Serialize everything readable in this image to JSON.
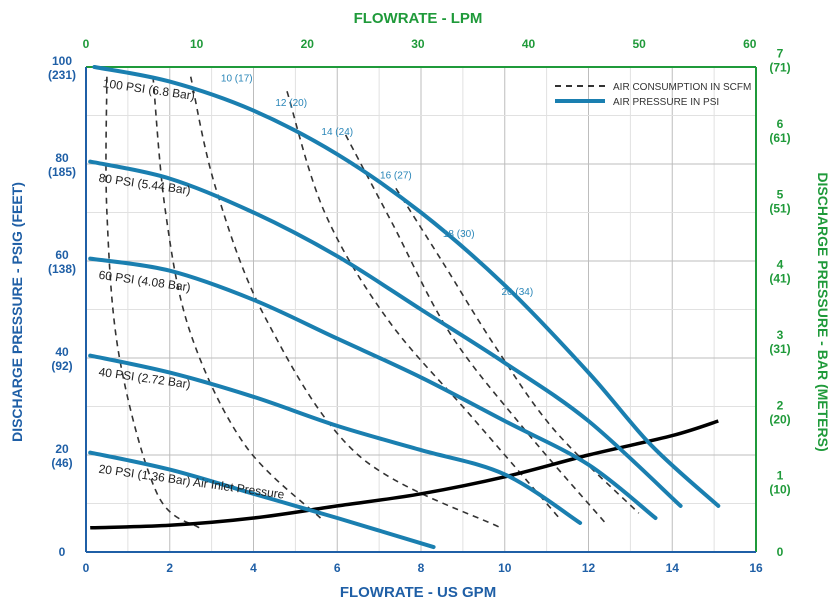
{
  "chart_data": {
    "type": "line",
    "x_top_title": "FLOWRATE - LPM",
    "x_bottom_title": "FLOWRATE - US GPM",
    "y_left_title": "DISCHARGE PRESSURE - PSIG (FEET)",
    "y_right_title": "DISCHARGE PRESSURE - BAR (METERS)",
    "xlim": [
      0,
      16
    ],
    "ylim": [
      0,
      100
    ],
    "x_ticks_gpm": [
      "0",
      "2",
      "4",
      "6",
      "8",
      "10",
      "12",
      "14",
      "16"
    ],
    "x_ticks_lpm": [
      "0",
      "10",
      "20",
      "30",
      "40",
      "50",
      "60"
    ],
    "y_ticks_left": [
      {
        "value": 0,
        "psi": "0",
        "feet": ""
      },
      {
        "value": 20,
        "psi": "20",
        "feet": "(46)"
      },
      {
        "value": 40,
        "psi": "40",
        "feet": "(92)"
      },
      {
        "value": 60,
        "psi": "60",
        "feet": "(138)"
      },
      {
        "value": 80,
        "psi": "80",
        "feet": "(185)"
      },
      {
        "value": 100,
        "psi": "100",
        "feet": "(231)"
      }
    ],
    "y_ticks_right": [
      {
        "value": 0,
        "bar": "0",
        "meters": ""
      },
      {
        "value": 14.5,
        "bar": "1",
        "meters": "(10)"
      },
      {
        "value": 29,
        "bar": "2",
        "meters": "(20)"
      },
      {
        "value": 43.5,
        "bar": "3",
        "meters": "(31)"
      },
      {
        "value": 58,
        "bar": "4",
        "meters": "(41)"
      },
      {
        "value": 72.5,
        "bar": "5",
        "meters": "(51)"
      },
      {
        "value": 87,
        "bar": "6",
        "meters": "(61)"
      },
      {
        "value": 101.5,
        "bar": "7",
        "meters": "(71)"
      }
    ],
    "legend": {
      "position": "top-right",
      "items": [
        {
          "label": "AIR CONSUMPTION IN SCFM",
          "style": "dashed"
        },
        {
          "label": "AIR PRESSURE IN PSI",
          "style": "solid"
        }
      ]
    },
    "series": [
      {
        "name": "100 PSI (6.8 Bar)",
        "kind": "air_pressure",
        "points": [
          [
            0.2,
            100
          ],
          [
            2,
            97
          ],
          [
            4,
            91
          ],
          [
            6,
            82
          ],
          [
            8,
            70
          ],
          [
            10,
            55
          ],
          [
            12,
            37
          ],
          [
            13.5,
            22
          ],
          [
            15.1,
            9.5
          ]
        ]
      },
      {
        "name": "80 PSI (5.44 Bar)",
        "kind": "air_pressure",
        "points": [
          [
            0.1,
            80.5
          ],
          [
            2,
            77
          ],
          [
            4,
            70
          ],
          [
            6,
            61
          ],
          [
            8,
            50
          ],
          [
            10,
            39
          ],
          [
            12,
            27
          ],
          [
            14.2,
            9.5
          ]
        ]
      },
      {
        "name": "60 PSI (4.08 Bar)",
        "kind": "air_pressure",
        "points": [
          [
            0.1,
            60.5
          ],
          [
            2,
            58
          ],
          [
            4,
            52
          ],
          [
            6,
            44
          ],
          [
            8,
            36
          ],
          [
            10,
            27
          ],
          [
            12,
            18
          ],
          [
            13.6,
            7
          ]
        ]
      },
      {
        "name": "40 PSI (2.72 Bar)",
        "kind": "air_pressure",
        "points": [
          [
            0.1,
            40.5
          ],
          [
            2,
            37
          ],
          [
            4,
            32
          ],
          [
            6,
            26
          ],
          [
            8,
            21
          ],
          [
            10,
            16
          ],
          [
            11.8,
            6
          ]
        ]
      },
      {
        "name": "20 PSI (1.36 Bar) Air Inlet Pressure",
        "kind": "air_pressure",
        "points": [
          [
            0.1,
            20.5
          ],
          [
            2,
            17
          ],
          [
            4,
            12
          ],
          [
            6,
            7
          ],
          [
            8.3,
            1
          ]
        ]
      },
      {
        "name": "10 (17)",
        "kind": "air_consumption",
        "points": [
          [
            0.5,
            98
          ],
          [
            0.5,
            70
          ],
          [
            0.8,
            40
          ],
          [
            1.7,
            12
          ],
          [
            2.7,
            5
          ]
        ]
      },
      {
        "name": "12 (20)",
        "kind": "air_consumption",
        "points": [
          [
            1.6,
            98
          ],
          [
            1.9,
            70
          ],
          [
            2.5,
            45
          ],
          [
            3.8,
            22
          ],
          [
            5.6,
            7
          ]
        ]
      },
      {
        "name": "14 (24)",
        "kind": "air_consumption",
        "points": [
          [
            2.5,
            98
          ],
          [
            3.1,
            75
          ],
          [
            4.3,
            48
          ],
          [
            6.5,
            20
          ],
          [
            9.9,
            5
          ]
        ]
      },
      {
        "name": "16 (27)",
        "kind": "air_consumption",
        "points": [
          [
            4.8,
            95
          ],
          [
            5.7,
            70
          ],
          [
            7.2,
            48
          ],
          [
            9.2,
            28
          ],
          [
            11.3,
            7
          ]
        ]
      },
      {
        "name": "18 (30)",
        "kind": "air_consumption",
        "points": [
          [
            6.2,
            86
          ],
          [
            7.3,
            68
          ],
          [
            8.7,
            45
          ],
          [
            10.5,
            25
          ],
          [
            12.4,
            6
          ]
        ]
      },
      {
        "name": "20 (34)",
        "kind": "air_consumption",
        "points": [
          [
            7.4,
            75
          ],
          [
            8.5,
            60
          ],
          [
            9.8,
            42
          ],
          [
            11.2,
            25
          ],
          [
            13.2,
            8
          ]
        ]
      },
      {
        "name": "",
        "kind": "npsh_black",
        "points": [
          [
            0.1,
            5
          ],
          [
            2,
            5.5
          ],
          [
            4,
            7
          ],
          [
            6,
            9.5
          ],
          [
            8,
            12
          ],
          [
            10,
            15.5
          ],
          [
            12,
            20
          ],
          [
            14,
            24
          ],
          [
            15.1,
            27
          ]
        ]
      }
    ],
    "air_consumption_label_positions": [
      {
        "text": "10 (17)",
        "x": 3.6,
        "y": 97
      },
      {
        "text": "12 (20)",
        "x": 4.9,
        "y": 92
      },
      {
        "text": "14 (24)",
        "x": 6.0,
        "y": 86
      },
      {
        "text": "16 (27)",
        "x": 7.4,
        "y": 77
      },
      {
        "text": "18 (30)",
        "x": 8.9,
        "y": 65
      },
      {
        "text": "20 (34)",
        "x": 10.3,
        "y": 53
      }
    ]
  }
}
